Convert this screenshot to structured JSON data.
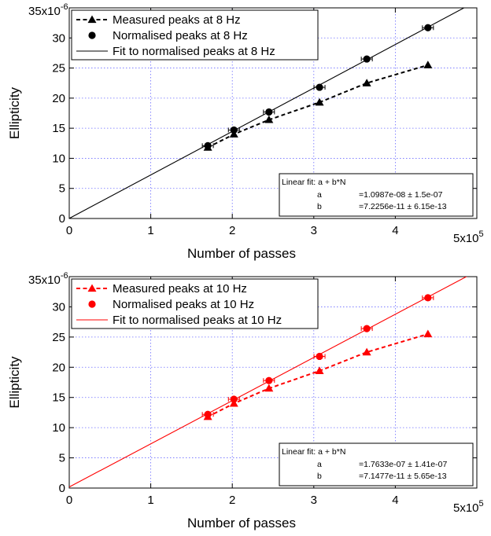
{
  "chart_data": [
    {
      "type": "line",
      "panel": "8 Hz",
      "xlabel": "Number of passes",
      "ylabel": "Ellipticity",
      "xlim": [
        0,
        500000
      ],
      "ylim": [
        0,
        3.5e-05
      ],
      "x_ticks": [
        "0",
        "1",
        "2",
        "3",
        "4"
      ],
      "x_multiplier": {
        "base": "5x10",
        "exp": "5"
      },
      "y_ticks": [
        "0",
        "5",
        "10",
        "15",
        "20",
        "25",
        "30"
      ],
      "y_multiplier": {
        "base": "35x10",
        "exp": "-6"
      },
      "grid": true,
      "legend_position": "top-left",
      "series": [
        {
          "name": "Measured peaks at 8 Hz",
          "marker": "triangle",
          "style": "dashed",
          "color": "#000000",
          "x": [
            170000,
            202000,
            245000,
            307000,
            365000,
            440000
          ],
          "y": [
            1.18e-05,
            1.4e-05,
            1.64e-05,
            1.93e-05,
            2.25e-05,
            2.55e-05
          ]
        },
        {
          "name": "Normalised peaks at 8 Hz",
          "marker": "circle",
          "style": "none",
          "color": "#000000",
          "x": [
            170000,
            202000,
            245000,
            307000,
            365000,
            440000
          ],
          "y": [
            1.21e-05,
            1.47e-05,
            1.77e-05,
            2.18e-05,
            2.65e-05,
            3.17e-05
          ]
        },
        {
          "name": "Fit to normalised peaks at 8 Hz",
          "marker": "none",
          "style": "solid",
          "color": "#000000",
          "intercept": 1.0987e-08,
          "slope": 7.2256e-11
        }
      ],
      "fit_box": {
        "title": "Linear fit: a + b*N",
        "rows": [
          {
            "param": "a",
            "value": "=1.0987e-08 ± 1.5e-07"
          },
          {
            "param": "b",
            "value": "=7.2256e-11 ± 6.15e-13"
          }
        ]
      }
    },
    {
      "type": "line",
      "panel": "10 Hz",
      "xlabel": "Number of passes",
      "ylabel": "Ellipticity",
      "xlim": [
        0,
        500000
      ],
      "ylim": [
        0,
        3.5e-05
      ],
      "x_ticks": [
        "0",
        "1",
        "2",
        "3",
        "4"
      ],
      "x_multiplier": {
        "base": "5x10",
        "exp": "5"
      },
      "y_ticks": [
        "0",
        "5",
        "10",
        "15",
        "20",
        "25",
        "30"
      ],
      "y_multiplier": {
        "base": "35x10",
        "exp": "-6"
      },
      "grid": true,
      "legend_position": "top-left",
      "series": [
        {
          "name": "Measured peaks at 10 Hz",
          "marker": "triangle",
          "style": "dashed",
          "color": "#ff0000",
          "x": [
            170000,
            202000,
            245000,
            307000,
            365000,
            440000
          ],
          "y": [
            1.18e-05,
            1.4e-05,
            1.65e-05,
            1.94e-05,
            2.25e-05,
            2.55e-05
          ]
        },
        {
          "name": "Normalised peaks at 10 Hz",
          "marker": "circle",
          "style": "none",
          "color": "#ff0000",
          "x": [
            170000,
            202000,
            245000,
            307000,
            365000,
            440000
          ],
          "y": [
            1.22e-05,
            1.47e-05,
            1.78e-05,
            2.18e-05,
            2.64e-05,
            3.15e-05
          ]
        },
        {
          "name": "Fit to normalised peaks at 10 Hz",
          "marker": "none",
          "style": "solid",
          "color": "#ff0000",
          "intercept": 1.7633e-07,
          "slope": 7.1477e-11
        }
      ],
      "fit_box": {
        "title": "Linear fit: a + b*N",
        "rows": [
          {
            "param": "a",
            "value": "=1.7633e-07 ± 1.41e-07"
          },
          {
            "param": "b",
            "value": "=7.1477e-11 ± 5.65e-13"
          }
        ]
      }
    }
  ]
}
